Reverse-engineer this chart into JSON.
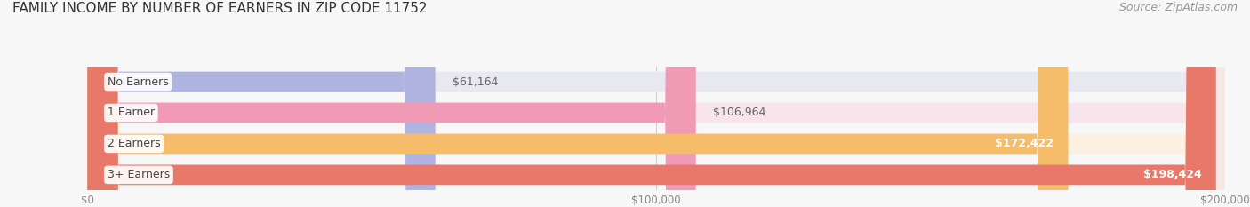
{
  "title": "FAMILY INCOME BY NUMBER OF EARNERS IN ZIP CODE 11752",
  "source": "Source: ZipAtlas.com",
  "categories": [
    "No Earners",
    "1 Earner",
    "2 Earners",
    "3+ Earners"
  ],
  "values": [
    61164,
    106964,
    172422,
    198424
  ],
  "value_labels": [
    "$61,164",
    "$106,964",
    "$172,422",
    "$198,424"
  ],
  "bar_colors": [
    "#b0b4e0",
    "#f09ab5",
    "#f5bc6a",
    "#e8796a"
  ],
  "bar_bg_colors": [
    "#e8e8f0",
    "#f8e4ec",
    "#fdf0e0",
    "#f8e8e4"
  ],
  "value_label_colors": [
    "#888888",
    "#888888",
    "#ffffff",
    "#ffffff"
  ],
  "xlim": [
    0,
    200000
  ],
  "xtick_values": [
    0,
    100000,
    200000
  ],
  "xtick_labels": [
    "$0",
    "$100,000",
    "$200,000"
  ],
  "title_fontsize": 11,
  "source_fontsize": 9,
  "label_fontsize": 9,
  "value_fontsize": 9,
  "background_color": "#f7f7f7"
}
